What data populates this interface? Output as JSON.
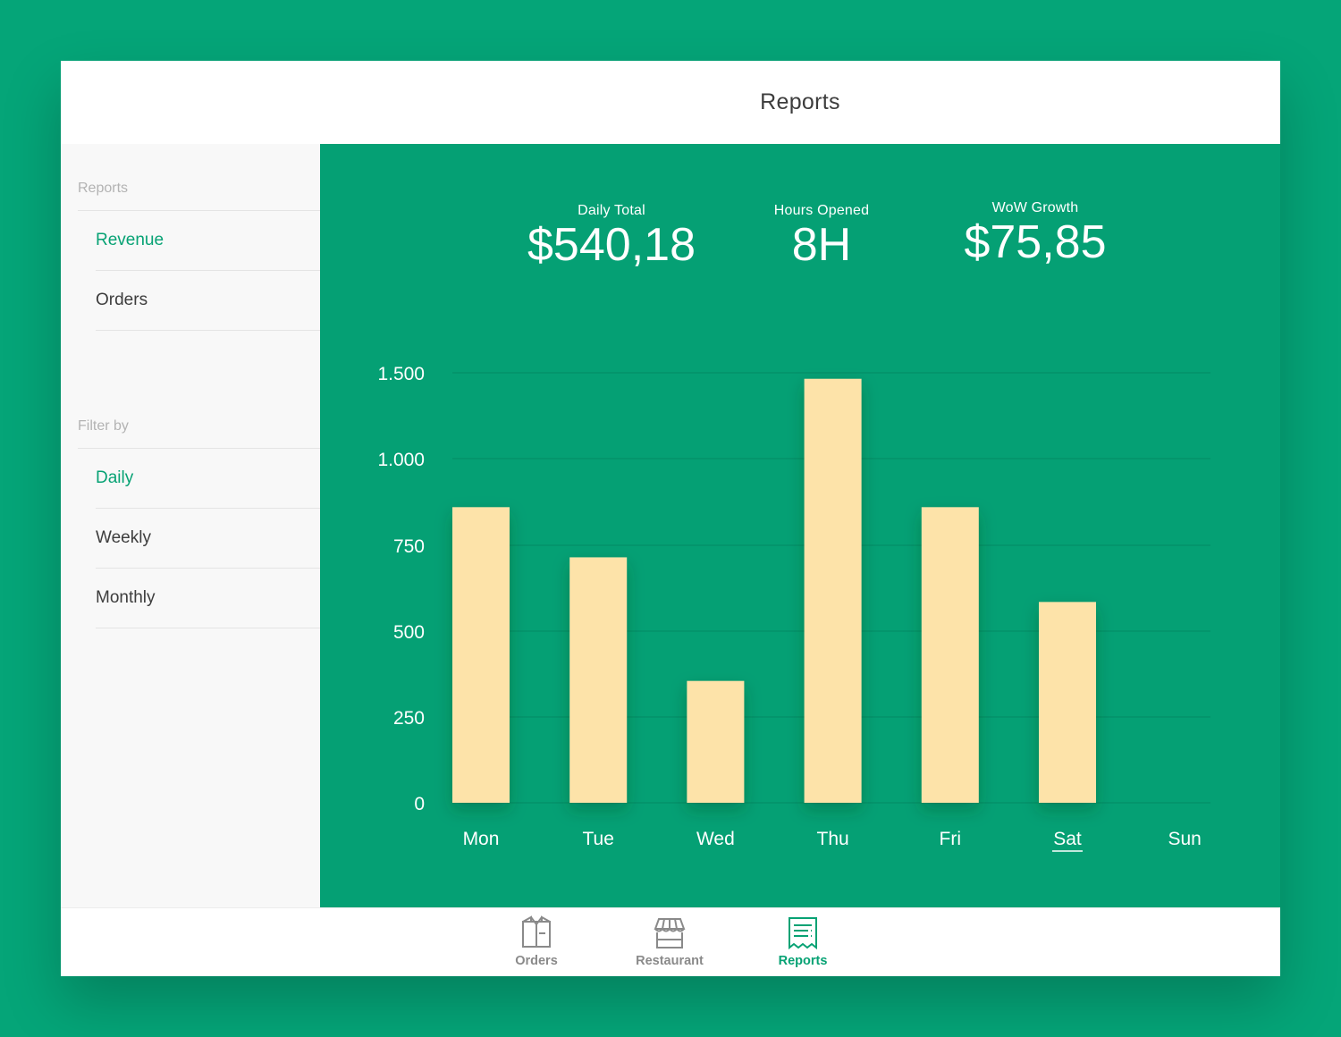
{
  "header": {
    "title": "Reports"
  },
  "sidebar": {
    "reports_label": "Reports",
    "report_items": [
      {
        "label": "Revenue",
        "active": true
      },
      {
        "label": "Orders",
        "active": false
      }
    ],
    "filter_label": "Filter by",
    "filter_items": [
      {
        "label": "Daily",
        "active": true
      },
      {
        "label": "Weekly",
        "active": false
      },
      {
        "label": "Monthly",
        "active": false
      }
    ]
  },
  "stats": [
    {
      "label": "Daily Total",
      "value": "$540,18"
    },
    {
      "label": "Hours Opened",
      "value": "8H"
    },
    {
      "label": "WoW Growth",
      "value": "$75,85"
    }
  ],
  "chart_data": {
    "type": "bar",
    "categories": [
      "Mon",
      "Tue",
      "Wed",
      "Thu",
      "Fri",
      "Sat",
      "Sun"
    ],
    "values": [
      860,
      715,
      355,
      1465,
      860,
      585,
      0
    ],
    "y_ticks": [
      0,
      250,
      500,
      750,
      1000,
      1500
    ],
    "y_tick_labels": [
      "0",
      "250",
      "500",
      "750",
      "1.000",
      "1.500"
    ],
    "selected_category": "Sat",
    "grid": true,
    "bar_color": "#fde3a9"
  },
  "tabbar": {
    "items": [
      {
        "label": "Orders",
        "icon": "orders-icon",
        "active": false
      },
      {
        "label": "Restaurant",
        "icon": "restaurant-icon",
        "active": false
      },
      {
        "label": "Reports",
        "icon": "reports-icon",
        "active": true
      }
    ]
  },
  "colors": {
    "accent": "#07a274",
    "background": "#05a578",
    "bar": "#fde3a9",
    "inactive_tab": "#8a8a8a"
  }
}
